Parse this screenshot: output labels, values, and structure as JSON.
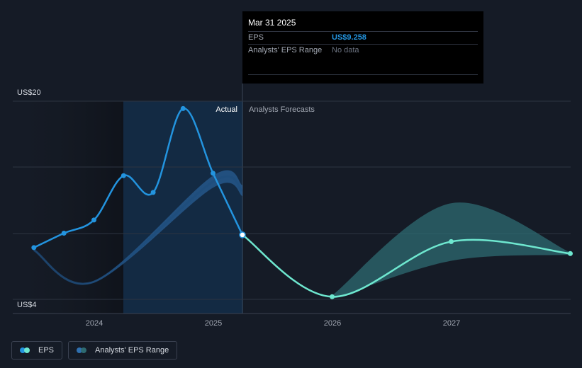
{
  "chart_data": {
    "type": "line",
    "y_axis": {
      "min": 4,
      "max": 20,
      "top_label": "US$20",
      "bottom_label": "US$4",
      "gridlines": true
    },
    "x_axis": {
      "tick_labels": [
        "2024",
        "2025",
        "2026",
        "2027"
      ]
    },
    "region_labels": {
      "actual": "Actual",
      "forecast": "Analysts Forecasts"
    },
    "series": [
      {
        "name": "EPS",
        "kind": "actual",
        "color": "#2394df",
        "points": [
          {
            "x": "2023-06-30",
            "y": 8.2
          },
          {
            "x": "2023-09-30",
            "y": 9.4
          },
          {
            "x": "2023-12-31",
            "y": 10.5
          },
          {
            "x": "2024-03-31",
            "y": 14.2
          },
          {
            "x": "2024-06-30",
            "y": 12.8
          },
          {
            "x": "2024-09-30",
            "y": 19.8
          },
          {
            "x": "2024-12-31",
            "y": 14.4
          },
          {
            "x": "2025-03-31",
            "y": 9.258
          }
        ]
      },
      {
        "name": "EPS",
        "kind": "forecast",
        "color": "#6ee7cf",
        "points": [
          {
            "x": "2025-03-31",
            "y": 9.258
          },
          {
            "x": "2025-12-31",
            "y": 4.1
          },
          {
            "x": "2026-12-31",
            "y": 8.7
          },
          {
            "x": "2027-12-31",
            "y": 7.7
          }
        ]
      },
      {
        "name": "Analysts' EPS Range",
        "kind": "range",
        "color": "#2e6b72",
        "points": [
          {
            "x": "2025-12-31",
            "low": 3.9,
            "high": 4.2
          },
          {
            "x": "2026-12-31",
            "low": 7.1,
            "high": 11.9
          },
          {
            "x": "2027-12-31",
            "low": 7.6,
            "high": 7.8
          }
        ]
      },
      {
        "name": "Analysts' EPS Range (past estimates)",
        "kind": "past_range",
        "color": "#2f70b0",
        "points": [
          {
            "x": "2023-06-30",
            "low": 8.0,
            "high": 8.0
          },
          {
            "x": "2023-12-31",
            "low": 5.3,
            "high": 5.4
          },
          {
            "x": "2024-12-31",
            "low": 13.2,
            "high": 14.2
          },
          {
            "x": "2025-03-31",
            "low": 12.5,
            "high": 13.4
          }
        ]
      }
    ]
  },
  "tooltip": {
    "date": "Mar 31 2025",
    "rows": [
      {
        "key": "EPS",
        "value": "US$9.258"
      },
      {
        "key": "Analysts' EPS Range",
        "value": "No data"
      }
    ]
  },
  "legend": {
    "items": [
      {
        "label": "EPS",
        "color_a": "#2394df",
        "color_b": "#6ee7cf"
      },
      {
        "label": "Analysts' EPS Range",
        "color_a": "#2f70b0",
        "color_b": "#2e6b72"
      }
    ]
  }
}
